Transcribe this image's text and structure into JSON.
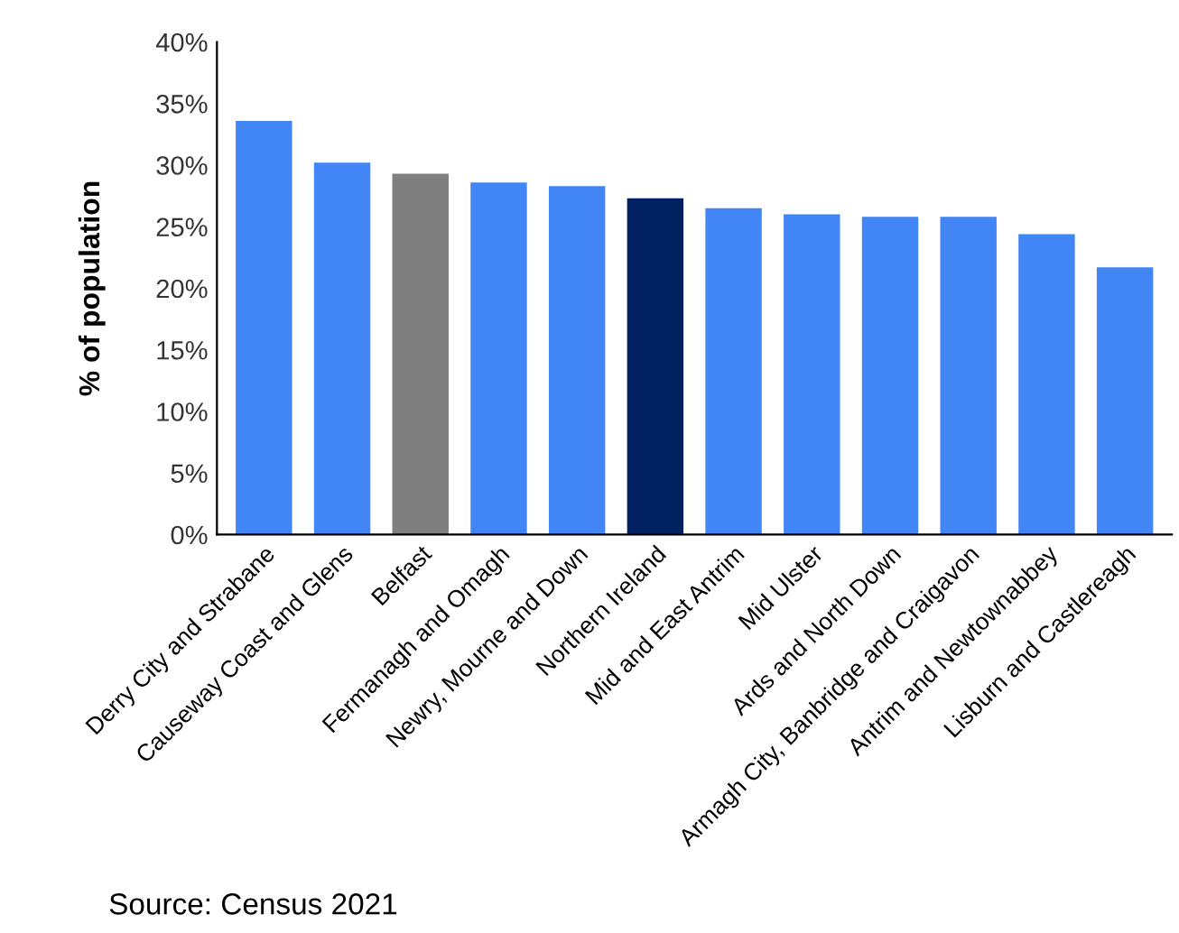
{
  "chart_data": {
    "type": "bar",
    "ylabel": "% of population",
    "categories": [
      "Derry City and Strabane",
      "Causeway Coast and Glens",
      "Belfast",
      "Fermanagh and Omagh",
      "Newry, Mourne and Down",
      "Northern Ireland",
      "Mid and East Antrim",
      "Mid Ulster",
      "Ards and North Down",
      "Armagh City, Banbridge and Craigavon",
      "Antrim and Newtownabbey",
      "Lisburn and Castlereagh"
    ],
    "values": [
      33.6,
      30.2,
      29.3,
      28.6,
      28.3,
      27.3,
      26.5,
      26.0,
      25.8,
      25.8,
      24.4,
      21.7
    ],
    "colors": [
      "#4285f4",
      "#4285f4",
      "#7f7f7f",
      "#4285f4",
      "#4285f4",
      "#002060",
      "#4285f4",
      "#4285f4",
      "#4285f4",
      "#4285f4",
      "#4285f4",
      "#4285f4"
    ],
    "ylim": [
      0,
      40
    ],
    "yticks": [
      {
        "value": 0,
        "label": "0%"
      },
      {
        "value": 5,
        "label": "5%"
      },
      {
        "value": 10,
        "label": "10%"
      },
      {
        "value": 15,
        "label": "15%"
      },
      {
        "value": 20,
        "label": "20%"
      },
      {
        "value": 25,
        "label": "25%"
      },
      {
        "value": 30,
        "label": "30%"
      },
      {
        "value": 35,
        "label": "35%"
      },
      {
        "value": 40,
        "label": "40%"
      }
    ],
    "grid": false,
    "legend": false,
    "annotations": [
      "Source: Census 2021"
    ]
  }
}
